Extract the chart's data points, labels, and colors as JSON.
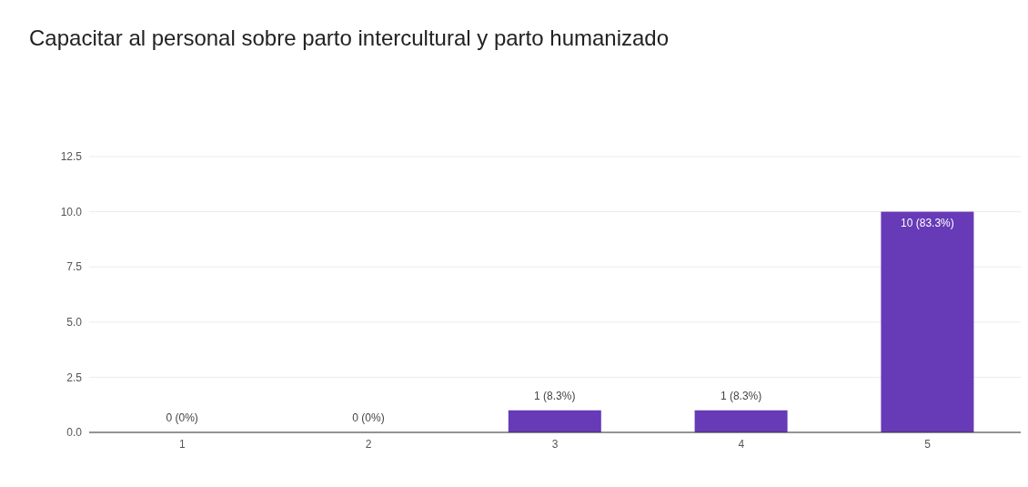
{
  "chart_data": {
    "type": "bar",
    "title": "Capacitar al personal sobre parto intercultural y parto humanizado",
    "categories": [
      "1",
      "2",
      "3",
      "4",
      "5"
    ],
    "values": [
      0,
      0,
      1,
      1,
      10
    ],
    "value_labels": [
      "0 (0%)",
      "0 (0%)",
      "1 (8.3%)",
      "1 (8.3%)",
      "10 (83.3%)"
    ],
    "color": "#673ab7",
    "ylim": [
      0,
      12.5
    ],
    "yticks": [
      {
        "value": 0,
        "label": "0.0"
      },
      {
        "value": 2.5,
        "label": "2.5"
      },
      {
        "value": 5,
        "label": "5.0"
      },
      {
        "value": 7.5,
        "label": "7.5"
      },
      {
        "value": 10,
        "label": "10.0"
      },
      12.5
    ],
    "grid": "y"
  }
}
